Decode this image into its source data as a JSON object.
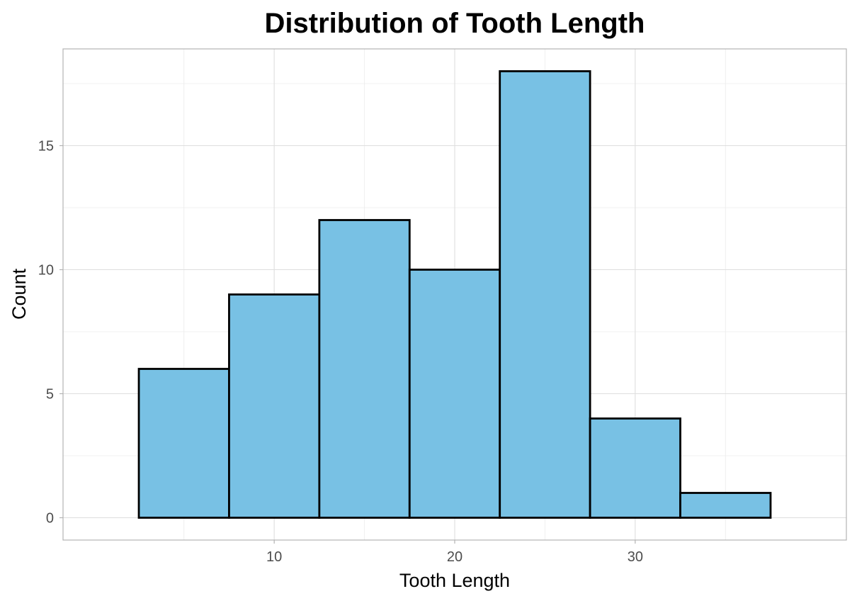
{
  "chart_data": {
    "type": "bar",
    "subtype": "histogram",
    "title": "Distribution of Tooth Length",
    "xlabel": "Tooth Length",
    "ylabel": "Count",
    "bins": [
      {
        "start": 2.5,
        "end": 7.5,
        "count": 6
      },
      {
        "start": 7.5,
        "end": 12.5,
        "count": 9
      },
      {
        "start": 12.5,
        "end": 17.5,
        "count": 12
      },
      {
        "start": 17.5,
        "end": 22.5,
        "count": 10
      },
      {
        "start": 22.5,
        "end": 27.5,
        "count": 18
      },
      {
        "start": 27.5,
        "end": 32.5,
        "count": 4
      },
      {
        "start": 32.5,
        "end": 37.5,
        "count": 1
      }
    ],
    "xlim": [
      -1.7,
      41.7
    ],
    "ylim": [
      -0.9,
      18.9
    ],
    "x_ticks": [
      10,
      20,
      30
    ],
    "x_minor_ticks": [
      5,
      15,
      25,
      35
    ],
    "y_ticks": [
      0,
      5,
      10,
      15
    ],
    "y_minor_ticks": [
      2.5,
      7.5,
      12.5,
      17.5
    ],
    "grid": true,
    "legend": "none",
    "bar_fill": "#78c1e4",
    "bar_outline": "#000000"
  }
}
